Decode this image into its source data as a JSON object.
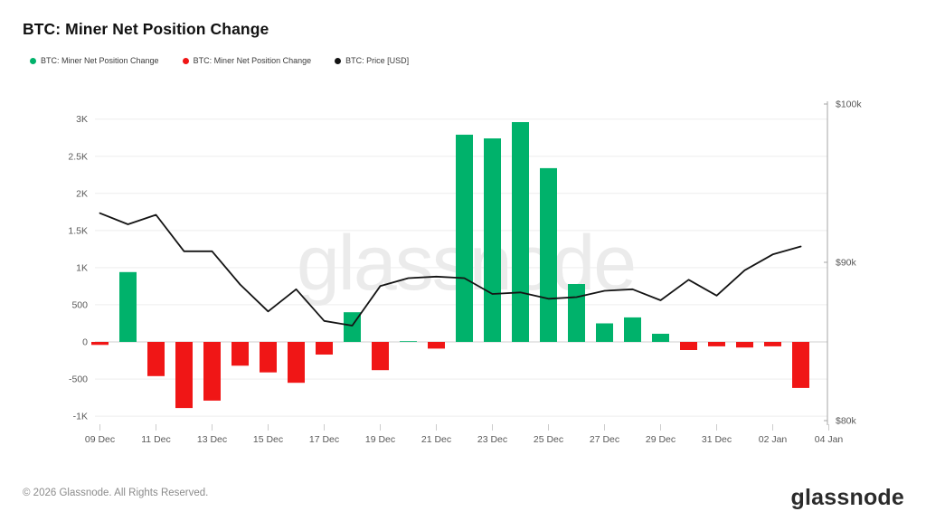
{
  "header": {
    "title": "BTC: Miner Net Position Change"
  },
  "legend": {
    "items": [
      {
        "label": "BTC: Miner Net Position Change",
        "color": "#00b26b"
      },
      {
        "label": "BTC: Miner Net Position Change",
        "color": "#f01616"
      },
      {
        "label": "BTC: Price [USD]",
        "color": "#141414"
      }
    ]
  },
  "watermark": "glassnode",
  "footer": {
    "copyright": "© 2026 Glassnode. All Rights Reserved.",
    "logo_text": "glassnode"
  },
  "chart_data": {
    "type": "bar",
    "title": "BTC: Miner Net Position Change",
    "xlabel": "",
    "ylabel": "",
    "grid": true,
    "legend_position": "top-left",
    "dates": [
      "09 Dec",
      "10 Dec",
      "11 Dec",
      "12 Dec",
      "13 Dec",
      "14 Dec",
      "15 Dec",
      "16 Dec",
      "17 Dec",
      "18 Dec",
      "19 Dec",
      "20 Dec",
      "21 Dec",
      "22 Dec",
      "23 Dec",
      "24 Dec",
      "25 Dec",
      "26 Dec",
      "27 Dec",
      "28 Dec",
      "29 Dec",
      "30 Dec",
      "31 Dec",
      "01 Jan",
      "02 Jan",
      "03 Jan"
    ],
    "series": [
      {
        "name": "BTC: Miner Net Position Change",
        "type": "bar",
        "axis": "left",
        "unit": "BTC",
        "values": [
          -40,
          940,
          -460,
          -890,
          -790,
          -320,
          -410,
          -550,
          -170,
          400,
          -380,
          10,
          -90,
          2790,
          2740,
          2960,
          2340,
          780,
          250,
          330,
          110,
          -110,
          -60,
          -75,
          -60,
          -620
        ]
      },
      {
        "name": "BTC: Price [USD]",
        "type": "line",
        "axis": "right",
        "unit": "USD",
        "values": [
          93100,
          92400,
          93000,
          90700,
          90700,
          88600,
          86900,
          88300,
          86300,
          86000,
          88500,
          89000,
          89100,
          89000,
          88000,
          88100,
          87700,
          87800,
          88200,
          88300,
          87600,
          88900,
          87900,
          89500,
          90500,
          91000
        ]
      }
    ],
    "left_axis": {
      "tick_values": [
        3000,
        2500,
        2000,
        1500,
        1000,
        500,
        0,
        -500,
        -1000
      ],
      "tick_labels": [
        "3K",
        "2.5K",
        "2K",
        "1.5K",
        "1K",
        "500",
        "0",
        "-500",
        "-1K"
      ],
      "range": [
        -1150,
        3300
      ]
    },
    "right_axis": {
      "tick_values": [
        100000,
        90000,
        80000
      ],
      "tick_labels": [
        "$100k",
        "$90k",
        "$80k"
      ],
      "range": [
        80000,
        100000
      ]
    },
    "x_axis": {
      "tick_labels": [
        "09 Dec",
        "11 Dec",
        "13 Dec",
        "15 Dec",
        "17 Dec",
        "19 Dec",
        "21 Dec",
        "23 Dec",
        "25 Dec",
        "27 Dec",
        "29 Dec",
        "31 Dec",
        "02 Jan",
        "04 Jan"
      ]
    },
    "colors": {
      "positive_bar": "#00b26b",
      "negative_bar": "#f01616",
      "price_line": "#141414",
      "gridline": "#eeeeee",
      "zero_line": "#cfcfcf",
      "axis_line": "#a6a6a6",
      "tick_text": "#595959",
      "watermark": "#ebebeb"
    }
  }
}
